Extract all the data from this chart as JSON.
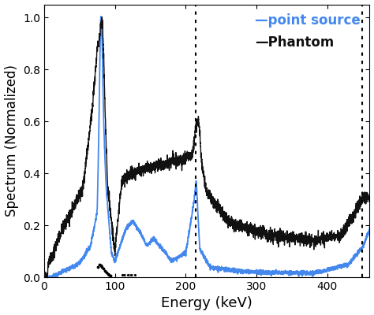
{
  "title": "",
  "xlabel": "Energy (keV)",
  "ylabel": "Spectrum (Normalized)",
  "xlim": [
    0,
    460
  ],
  "ylim": [
    0,
    1.05
  ],
  "yticks": [
    0,
    0.2,
    0.4,
    0.6,
    0.8,
    1.0
  ],
  "xticks": [
    0,
    100,
    200,
    300,
    400
  ],
  "blue_color": "#4488ee",
  "black_color": "#111111",
  "legend_blue": "—point source",
  "legend_black": "—Phantom",
  "vline1_x": 214,
  "vline2_x": 450,
  "xlabel_fontsize": 13,
  "ylabel_fontsize": 12,
  "legend_fontsize": 12
}
